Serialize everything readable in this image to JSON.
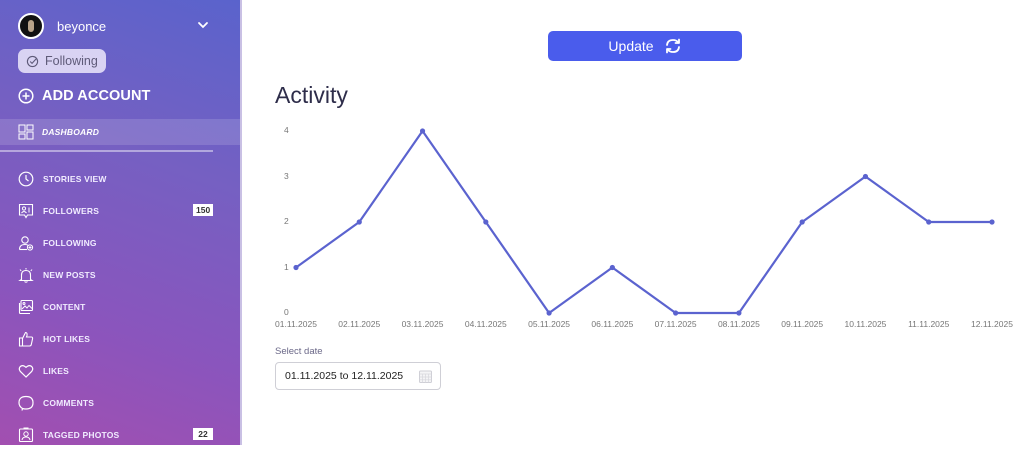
{
  "sidebar": {
    "account": {
      "name": "beyonce",
      "avatar": "avatar-photo",
      "chevron": "chevron-down-icon"
    },
    "following_pill": {
      "label": "Following",
      "icon": "check-circle-icon"
    },
    "add_account": {
      "label": "ADD ACCOUNT",
      "icon": "plus-circle-icon"
    },
    "active_item": {
      "label": "DASHBOARD",
      "icon": "dashboard-grid-icon"
    },
    "items": [
      {
        "label": "STORIES VIEW",
        "icon": "clock-icon"
      },
      {
        "label": "FOLLOWERS",
        "icon": "followers-icon",
        "badge": "150"
      },
      {
        "label": "FOLLOWING",
        "icon": "user-plus-icon"
      },
      {
        "label": "NEW POSTS",
        "icon": "bell-icon"
      },
      {
        "label": "CONTENT",
        "icon": "images-icon"
      },
      {
        "label": "HOT LIKES",
        "icon": "thumbs-up-icon"
      },
      {
        "label": "LIKES",
        "icon": "heart-icon"
      },
      {
        "label": "COMMENTS",
        "icon": "comment-icon"
      },
      {
        "label": "TAGGED PHOTOS",
        "icon": "tagged-user-icon",
        "badge": "22"
      }
    ],
    "colors": {
      "gradient_top": "#5a63cc",
      "gradient_bottom": "#a24fb0"
    }
  },
  "main": {
    "update_button": {
      "label": "Update",
      "icon": "refresh-icon",
      "color": "#4a5cec"
    },
    "title": "Activity",
    "date_picker": {
      "label": "Select date",
      "value": "01.11.2025 to 12.11.2025",
      "icon": "calendar-icon"
    }
  },
  "chart_data": {
    "type": "line",
    "title": "Activity",
    "xlabel": "",
    "ylabel": "",
    "categories": [
      "01.11.2025",
      "02.11.2025",
      "03.11.2025",
      "04.11.2025",
      "05.11.2025",
      "06.11.2025",
      "07.11.2025",
      "08.11.2025",
      "09.11.2025",
      "10.11.2025",
      "11.11.2025",
      "12.11.2025"
    ],
    "series": [
      {
        "name": "Activity",
        "values": [
          1,
          2,
          4,
          2,
          0,
          1,
          0,
          0,
          2,
          3,
          2,
          2
        ],
        "color": "#5b63cf"
      }
    ],
    "yticks": [
      "0",
      "1",
      "2",
      "3",
      "4"
    ],
    "ylim": [
      0,
      4
    ],
    "grid": false,
    "legend": "none"
  }
}
